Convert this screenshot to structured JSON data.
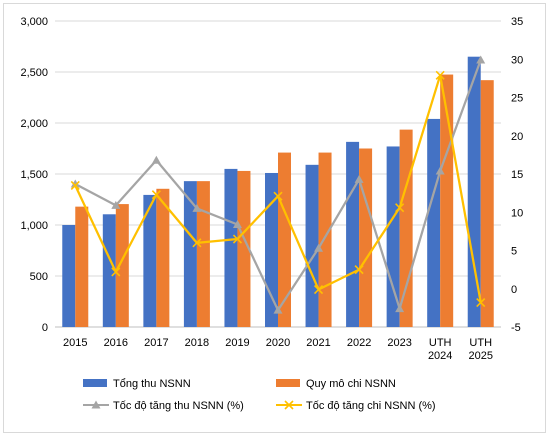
{
  "chart_data": {
    "type": "bar",
    "title": "",
    "categories": [
      [
        "2015"
      ],
      [
        "2016"
      ],
      [
        "2017"
      ],
      [
        "2018"
      ],
      [
        "2019"
      ],
      [
        "2020"
      ],
      [
        "2021"
      ],
      [
        "2022"
      ],
      [
        "2023"
      ],
      [
        "UTH",
        "2024"
      ],
      [
        "UTH",
        "2025"
      ]
    ],
    "left_axis": {
      "ylim": [
        0,
        3000
      ],
      "ticks": [
        "0",
        "500",
        "1,000",
        "1,500",
        "2,000",
        "2,500",
        "3,000"
      ],
      "tick_values": [
        0,
        500,
        1000,
        1500,
        2000,
        2500,
        3000
      ]
    },
    "right_axis": {
      "ylim": [
        -5,
        35
      ],
      "ticks": [
        "-5",
        "0",
        "5",
        "10",
        "15",
        "20",
        "25",
        "30",
        "35"
      ],
      "tick_values": [
        -5,
        0,
        5,
        10,
        15,
        20,
        25,
        30,
        35
      ]
    },
    "grid": "horizontal",
    "legend_position": "bottom",
    "bar_series": [
      {
        "name": "Tổng thu NSNN",
        "color": "#4472c4",
        "values": [
          1000,
          1105,
          1295,
          1430,
          1550,
          1510,
          1590,
          1815,
          1770,
          2040,
          2650
        ]
      },
      {
        "name": "Quy mô chi NSNN",
        "color": "#ed7d31",
        "values": [
          1180,
          1205,
          1355,
          1430,
          1530,
          1710,
          1710,
          1750,
          1935,
          2475,
          2420
        ]
      }
    ],
    "line_series": [
      {
        "name": "Tốc độ tăng thu NSNN (%)",
        "color": "#a5a5a5",
        "marker": "triangle",
        "values": [
          13.7,
          10.9,
          16.8,
          10.5,
          8.4,
          -2.8,
          5.3,
          14.3,
          -2.6,
          15.4,
          29.9
        ]
      },
      {
        "name": "Tốc độ tăng chi NSNN (%)",
        "color": "#ffc000",
        "marker": "x",
        "values": [
          13.5,
          2.2,
          12.3,
          6.0,
          6.5,
          12.1,
          -0.1,
          2.5,
          10.6,
          27.9,
          -1.8
        ]
      }
    ]
  }
}
